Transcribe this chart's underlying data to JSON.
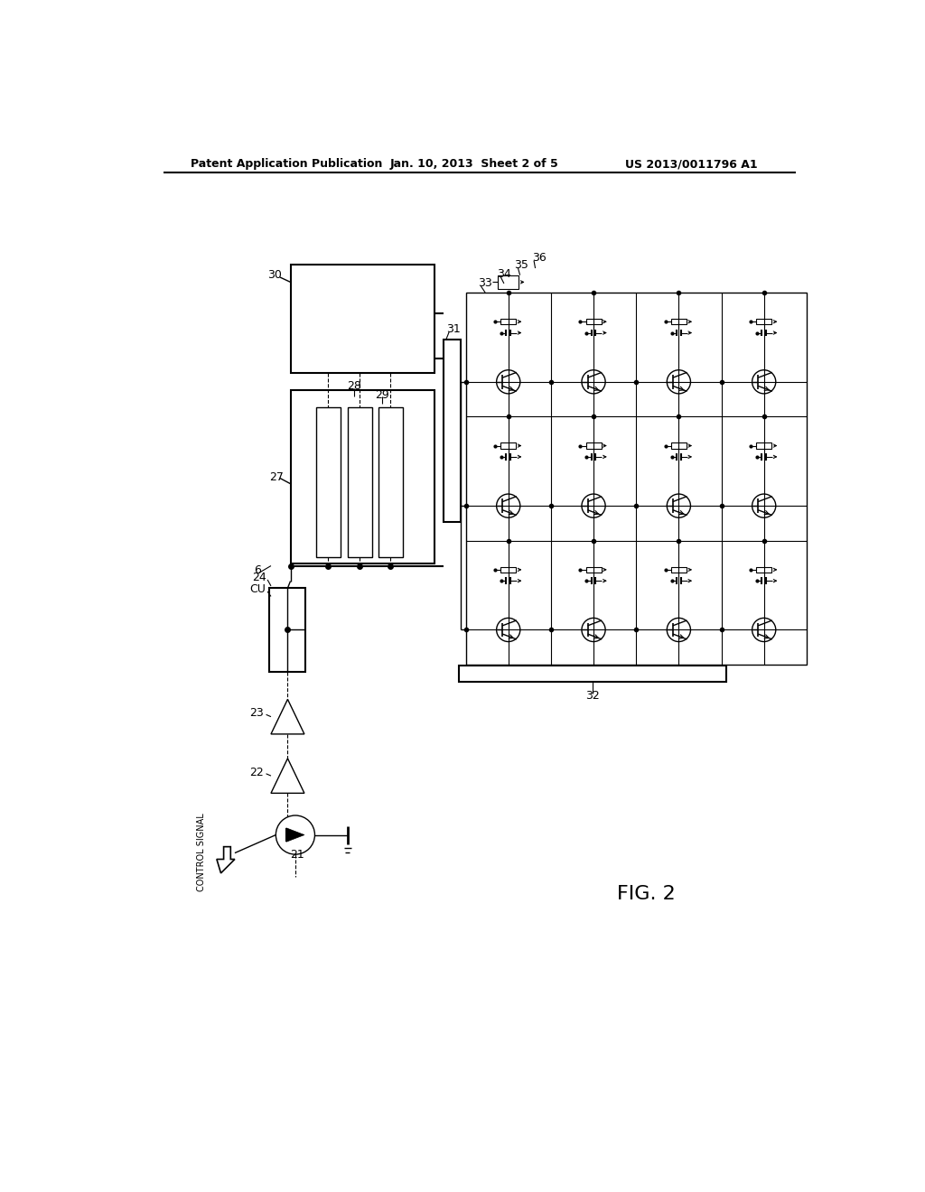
{
  "title_left": "Patent Application Publication",
  "title_center": "Jan. 10, 2013  Sheet 2 of 5",
  "title_right": "US 2013/0011796 A1",
  "fig_label": "FIG. 2",
  "bg_color": "#ffffff",
  "line_color": "#000000"
}
